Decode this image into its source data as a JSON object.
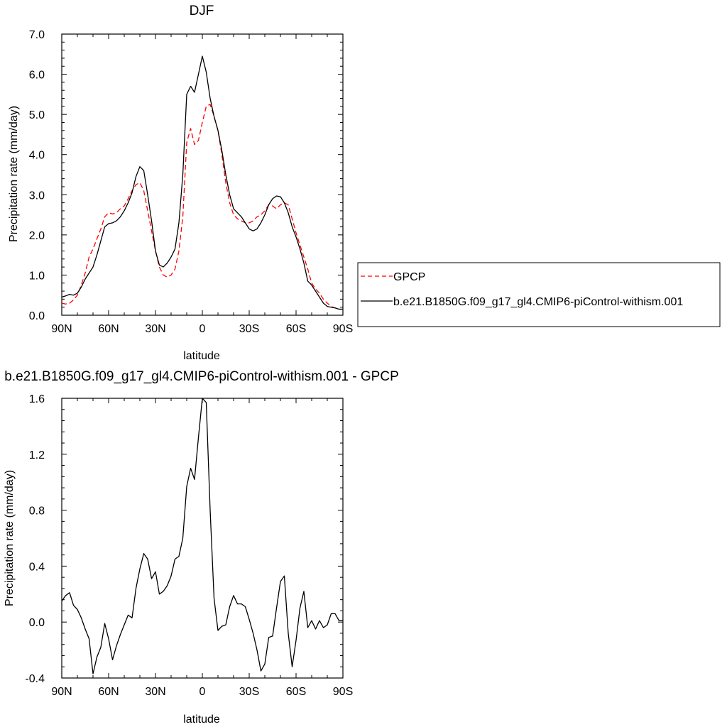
{
  "chart_data": [
    {
      "type": "line",
      "title": "DJF",
      "xlabel": "latitude",
      "ylabel": "Precipitation rate (mm/day)",
      "xlim": [
        90,
        -90
      ],
      "ylim": [
        0,
        7
      ],
      "x_ticks": [
        90,
        60,
        30,
        0,
        -30,
        -60,
        -90
      ],
      "x_tick_labels": [
        "90N",
        "60N",
        "30N",
        "0",
        "30S",
        "60S",
        "90S"
      ],
      "y_ticks": [
        0,
        1,
        2,
        3,
        4,
        5,
        6,
        7
      ],
      "y_tick_labels": [
        "0.0",
        "1.0",
        "2.0",
        "3.0",
        "4.0",
        "5.0",
        "6.0",
        "7.0"
      ],
      "legend_position": "right",
      "grid": false,
      "series": [
        {
          "name": "GPCP",
          "color": "#ff0000",
          "dash": "dashed",
          "x": [
            90,
            87.5,
            85,
            82.5,
            80,
            77.5,
            75,
            72.5,
            70,
            67.5,
            65,
            62.5,
            60,
            57.5,
            55,
            52.5,
            50,
            47.5,
            45,
            42.5,
            40,
            37.5,
            35,
            32.5,
            30,
            27.5,
            25,
            22.5,
            20,
            17.5,
            15,
            12.5,
            10,
            7.5,
            5,
            2.5,
            0,
            -2.5,
            -5,
            -7.5,
            -10,
            -12.5,
            -15,
            -17.5,
            -20,
            -22.5,
            -25,
            -27.5,
            -30,
            -32.5,
            -35,
            -37.5,
            -40,
            -42.5,
            -45,
            -47.5,
            -50,
            -52.5,
            -55,
            -57.5,
            -60,
            -62.5,
            -65,
            -67.5,
            -70,
            -72.5,
            -75,
            -77.5,
            -80,
            -82.5,
            -85,
            -87.5,
            -90
          ],
          "values": [
            0.3,
            0.28,
            0.3,
            0.38,
            0.5,
            0.75,
            1.05,
            1.45,
            1.65,
            1.9,
            2.15,
            2.45,
            2.55,
            2.52,
            2.55,
            2.65,
            2.72,
            2.9,
            3.1,
            3.25,
            3.3,
            3.1,
            2.6,
            2.1,
            1.6,
            1.2,
            1.0,
            0.95,
            1.0,
            1.15,
            1.6,
            2.45,
            4.3,
            4.65,
            4.25,
            4.35,
            4.8,
            5.2,
            5.25,
            4.95,
            4.6,
            4.0,
            3.3,
            2.8,
            2.5,
            2.4,
            2.35,
            2.3,
            2.3,
            2.35,
            2.45,
            2.5,
            2.6,
            2.75,
            2.72,
            2.65,
            2.75,
            2.8,
            2.75,
            2.4,
            2.05,
            1.75,
            1.45,
            1.15,
            0.8,
            0.65,
            0.55,
            0.4,
            0.3,
            0.22,
            0.18,
            0.15,
            0.15
          ]
        },
        {
          "name": "b.e21.B1850G.f09_g17_gl4.CMIP6-piControl-withism.001",
          "color": "#000000",
          "dash": "solid",
          "x": [
            90,
            87.5,
            85,
            82.5,
            80,
            77.5,
            75,
            72.5,
            70,
            67.5,
            65,
            62.5,
            60,
            57.5,
            55,
            52.5,
            50,
            47.5,
            45,
            42.5,
            40,
            37.5,
            35,
            32.5,
            30,
            27.5,
            25,
            22.5,
            20,
            17.5,
            15,
            12.5,
            10,
            7.5,
            5,
            2.5,
            0,
            -2.5,
            -5,
            -7.5,
            -10,
            -12.5,
            -15,
            -17.5,
            -20,
            -22.5,
            -25,
            -27.5,
            -30,
            -32.5,
            -35,
            -37.5,
            -40,
            -42.5,
            -45,
            -47.5,
            -50,
            -52.5,
            -55,
            -57.5,
            -60,
            -62.5,
            -65,
            -67.5,
            -70,
            -72.5,
            -75,
            -77.5,
            -80,
            -82.5,
            -85,
            -87.5,
            -90
          ],
          "values": [
            0.45,
            0.48,
            0.52,
            0.5,
            0.55,
            0.7,
            0.9,
            1.05,
            1.2,
            1.5,
            1.85,
            2.2,
            2.28,
            2.3,
            2.35,
            2.45,
            2.6,
            2.8,
            3.05,
            3.45,
            3.7,
            3.6,
            3.0,
            2.35,
            1.6,
            1.25,
            1.2,
            1.3,
            1.45,
            1.65,
            2.3,
            3.5,
            5.5,
            5.7,
            5.55,
            6.0,
            6.45,
            6.05,
            5.4,
            4.95,
            4.6,
            4.1,
            3.5,
            3.0,
            2.65,
            2.55,
            2.45,
            2.3,
            2.15,
            2.1,
            2.15,
            2.3,
            2.5,
            2.75,
            2.9,
            2.97,
            2.95,
            2.8,
            2.55,
            2.2,
            1.95,
            1.65,
            1.3,
            0.85,
            0.75,
            0.6,
            0.45,
            0.3,
            0.22,
            0.2,
            0.18,
            0.15,
            0.15
          ]
        }
      ]
    },
    {
      "type": "line",
      "title": "b.e21.B1850G.f09_g17_gl4.CMIP6-piControl-withism.001 - GPCP",
      "xlabel": "latitude",
      "ylabel": "Precipitation rate (mm/day)",
      "xlim": [
        90,
        -90
      ],
      "ylim": [
        -0.4,
        1.6
      ],
      "x_ticks": [
        90,
        60,
        30,
        0,
        -30,
        -60,
        -90
      ],
      "x_tick_labels": [
        "90N",
        "60N",
        "30N",
        "0",
        "30S",
        "60S",
        "90S"
      ],
      "y_ticks": [
        -0.4,
        0,
        0.4,
        0.8,
        1.2,
        1.6
      ],
      "y_tick_labels": [
        "-0.4",
        "0.0",
        "0.4",
        "0.8",
        "1.2",
        "1.6"
      ],
      "grid": false,
      "series": [
        {
          "color": "#000000",
          "dash": "solid",
          "x": [
            90,
            87.5,
            85,
            82.5,
            80,
            77.5,
            75,
            72.5,
            70,
            67.5,
            65,
            62.5,
            60,
            57.5,
            55,
            52.5,
            50,
            47.5,
            45,
            42.5,
            40,
            37.5,
            35,
            32.5,
            30,
            27.5,
            25,
            22.5,
            20,
            17.5,
            15,
            12.5,
            10,
            7.5,
            5,
            2.5,
            0,
            -2.5,
            -5,
            -7.5,
            -10,
            -12.5,
            -15,
            -17.5,
            -20,
            -22.5,
            -25,
            -27.5,
            -30,
            -32.5,
            -35,
            -37.5,
            -40,
            -42.5,
            -45,
            -47.5,
            -50,
            -52.5,
            -55,
            -57.5,
            -60,
            -62.5,
            -65,
            -67.5,
            -70,
            -72.5,
            -75,
            -77.5,
            -80,
            -82.5,
            -85,
            -87.5,
            -90
          ],
          "values": [
            0.15,
            0.19,
            0.21,
            0.12,
            0.09,
            0.03,
            -0.05,
            -0.12,
            -0.37,
            -0.25,
            -0.18,
            -0.01,
            -0.12,
            -0.27,
            -0.17,
            -0.09,
            -0.02,
            0.05,
            0.03,
            0.24,
            0.38,
            0.49,
            0.45,
            0.31,
            0.36,
            0.2,
            0.22,
            0.26,
            0.33,
            0.45,
            0.47,
            0.6,
            0.97,
            1.1,
            1.02,
            1.32,
            1.6,
            1.57,
            0.8,
            0.17,
            -0.06,
            -0.03,
            -0.02,
            0.11,
            0.19,
            0.13,
            0.13,
            0.11,
            0.02,
            -0.08,
            -0.2,
            -0.35,
            -0.3,
            -0.11,
            -0.1,
            0.1,
            0.29,
            0.33,
            -0.08,
            -0.32,
            -0.13,
            0.1,
            0.22,
            -0.04,
            0.01,
            -0.05,
            0.01,
            -0.04,
            -0.02,
            0.06,
            0.06,
            0.01,
            0.01
          ]
        }
      ]
    }
  ]
}
